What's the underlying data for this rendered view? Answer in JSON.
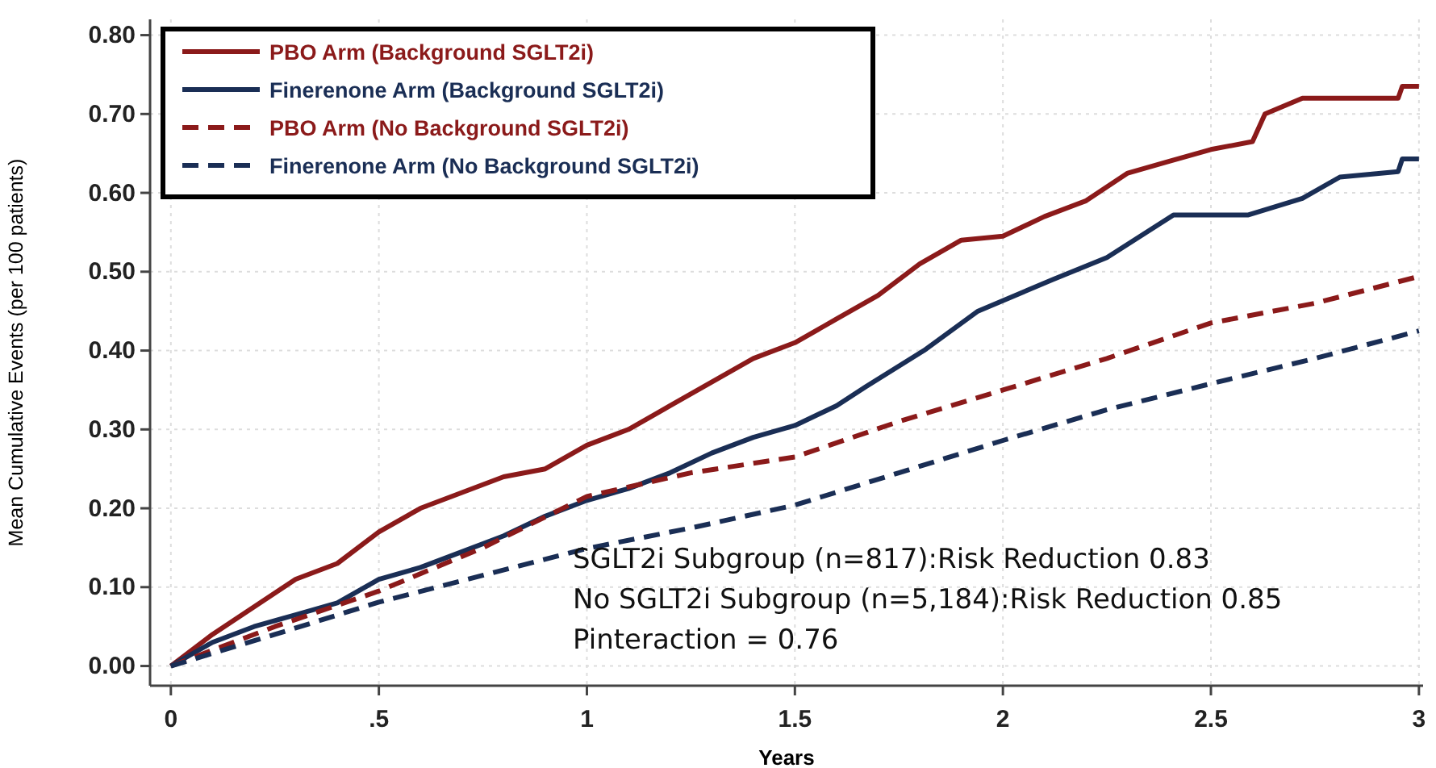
{
  "chart_data": {
    "type": "line",
    "xlabel": "Years",
    "ylabel": "Mean Cumulative Events (per 100 patients)",
    "xlim": [
      -0.05,
      3.01
    ],
    "ylim": [
      -0.025,
      0.82
    ],
    "xticks": [
      0,
      {
        "value": 0.5,
        "label": ".5"
      },
      1,
      1.5,
      2,
      2.5,
      3
    ],
    "yticks": [
      {
        "value": 0,
        "label": "0.00"
      },
      {
        "value": 0.1,
        "label": "0.10"
      },
      {
        "value": 0.2,
        "label": "0.20"
      },
      {
        "value": 0.3,
        "label": "0.30"
      },
      {
        "value": 0.4,
        "label": "0.40"
      },
      {
        "value": 0.5,
        "label": "0.50"
      },
      {
        "value": 0.6,
        "label": "0.60"
      },
      {
        "value": 0.7,
        "label": "0.70"
      },
      {
        "value": 0.8,
        "label": "0.80"
      }
    ],
    "grid": true,
    "legend": "top left",
    "marker": "none",
    "series": [
      {
        "name": "PBO Arm (Background SGLT2i)",
        "color": "#8b1a1a",
        "line_style": "solid",
        "x": [
          0,
          0.1,
          0.2,
          0.3,
          0.4,
          0.5,
          0.6,
          0.7,
          0.8,
          0.9,
          1.0,
          1.1,
          1.2,
          1.3,
          1.4,
          1.5,
          1.6,
          1.7,
          1.8,
          1.9,
          2.0,
          2.1,
          2.2,
          2.3,
          2.4,
          2.5,
          2.6,
          2.63,
          2.72,
          2.95,
          2.96,
          3.0
        ],
        "values": [
          0,
          0.04,
          0.075,
          0.11,
          0.13,
          0.17,
          0.2,
          0.22,
          0.24,
          0.25,
          0.28,
          0.3,
          0.33,
          0.36,
          0.39,
          0.41,
          0.44,
          0.47,
          0.51,
          0.54,
          0.545,
          0.57,
          0.59,
          0.625,
          0.64,
          0.655,
          0.665,
          0.7,
          0.72,
          0.72,
          0.735,
          0.735
        ]
      },
      {
        "name": "Finerenone Arm (Background SGLT2i)",
        "color": "#1a2e55",
        "line_style": "solid",
        "x": [
          0,
          0.1,
          0.2,
          0.3,
          0.4,
          0.5,
          0.6,
          0.7,
          0.8,
          0.9,
          1.0,
          1.1,
          1.2,
          1.3,
          1.4,
          1.5,
          1.6,
          1.67,
          1.81,
          1.94,
          2.12,
          2.25,
          2.41,
          2.59,
          2.72,
          2.81,
          2.95,
          2.96,
          3.0
        ],
        "values": [
          0,
          0.03,
          0.05,
          0.065,
          0.08,
          0.11,
          0.125,
          0.145,
          0.165,
          0.19,
          0.21,
          0.225,
          0.245,
          0.27,
          0.29,
          0.305,
          0.33,
          0.354,
          0.4,
          0.45,
          0.49,
          0.518,
          0.572,
          0.572,
          0.593,
          0.62,
          0.627,
          0.643,
          0.643
        ]
      },
      {
        "name": "PBO Arm (No Background SGLT2i)",
        "color": "#8b1a1a",
        "line_style": "dashed",
        "x": [
          0,
          0.25,
          0.5,
          0.75,
          1,
          1.25,
          1.5,
          1.75,
          2,
          2.25,
          2.5,
          2.75,
          3
        ],
        "values": [
          0,
          0.05,
          0.095,
          0.15,
          0.215,
          0.245,
          0.265,
          0.31,
          0.35,
          0.39,
          0.435,
          0.46,
          0.494
        ]
      },
      {
        "name": "Finerenone Arm (No Background SGLT2i)",
        "color": "#1a2e55",
        "line_style": "dashed",
        "x": [
          0,
          0.25,
          0.5,
          0.75,
          1,
          1.25,
          1.5,
          1.75,
          2,
          2.25,
          2.5,
          2.75,
          3
        ],
        "values": [
          0,
          0.04,
          0.081,
          0.115,
          0.149,
          0.175,
          0.204,
          0.245,
          0.286,
          0.325,
          0.358,
          0.39,
          0.425
        ]
      }
    ],
    "annotations": [
      "SGLT2i Subgroup (n=817):Risk Reduction 0.83",
      "No SGLT2i Subgroup (n=5,184):Risk Reduction 0.85",
      "Pinteraction = 0.76"
    ]
  }
}
